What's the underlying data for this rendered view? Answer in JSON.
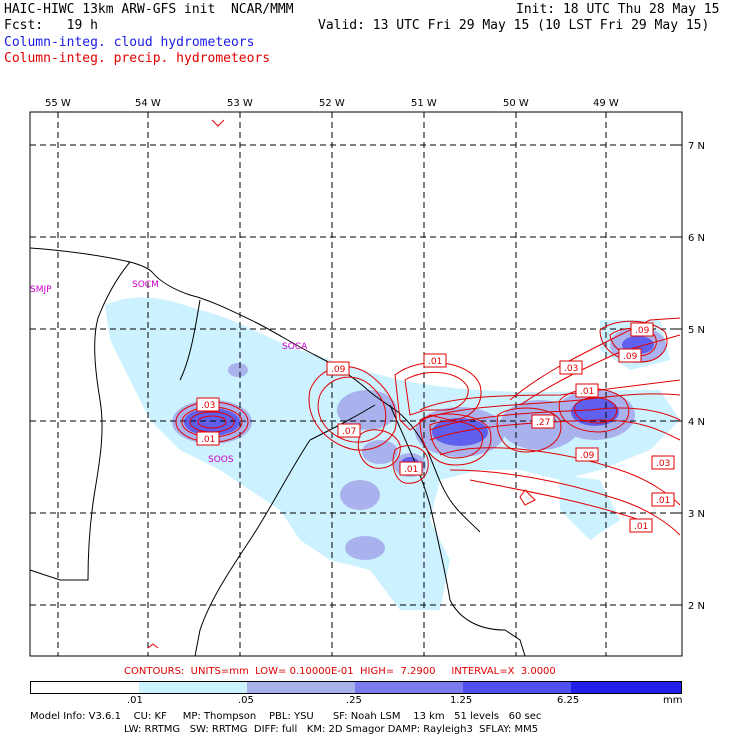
{
  "header": {
    "title_left": "HAIC-HIWC 13km ARW-GFS init  NCAR/MMM",
    "fcst": "Fcst:   19 h",
    "init": "Init: 18 UTC Thu 28 May 15",
    "valid": "Valid: 13 UTC Fri 29 May 15 (10 LST Fri 29 May 15)",
    "field_cloud": "Column-integ. cloud hydrometeors",
    "field_precip": "Column-integ. precip. hydrometeors"
  },
  "colors": {
    "cloud_label": "#1a1ae6",
    "precip_label": "#e00000",
    "fill_levels": [
      "#ffffff",
      "#ccf2ff",
      "#aab2ee",
      "#7c7cf0",
      "#5050f0",
      "#2020e8"
    ]
  },
  "map": {
    "lon_labels": [
      "55 W",
      "54 W",
      "53 W",
      "52 W",
      "51 W",
      "50 W",
      "49 W"
    ],
    "lat_labels": [
      "7 N",
      "6 N",
      "5 N",
      "4 N",
      "3 N",
      "2 N"
    ],
    "stations": [
      "SMJP",
      "SOCM",
      "SOCA",
      "SOOS"
    ],
    "contour_labels": [
      ".03",
      ".01",
      ".09",
      ".01",
      ".07",
      ".01",
      ".03",
      ".01",
      ".27",
      ".09",
      ".03",
      ".01",
      ".01",
      ".09",
      ".09"
    ]
  },
  "legend": {
    "contours": "CONTOURS:  UNITS=mm  LOW= 0.10000E-01  HIGH=  7.2900     INTERVAL=X  3.0000",
    "colorbar_ticks": [
      ".01",
      ".05",
      ".25",
      "1.25",
      "6.25"
    ],
    "units": "mm"
  },
  "footer": {
    "line1": "Model Info: V3.6.1    CU: KF     MP: Thompson    PBL: YSU      SF: Noah LSM    13 km   51 levels   60 sec",
    "line2": "LW: RRTMG   SW: RRTMG  DIFF: full   KM: 2D Smagor DAMP: Rayleigh3  SFLAY: MM5"
  }
}
